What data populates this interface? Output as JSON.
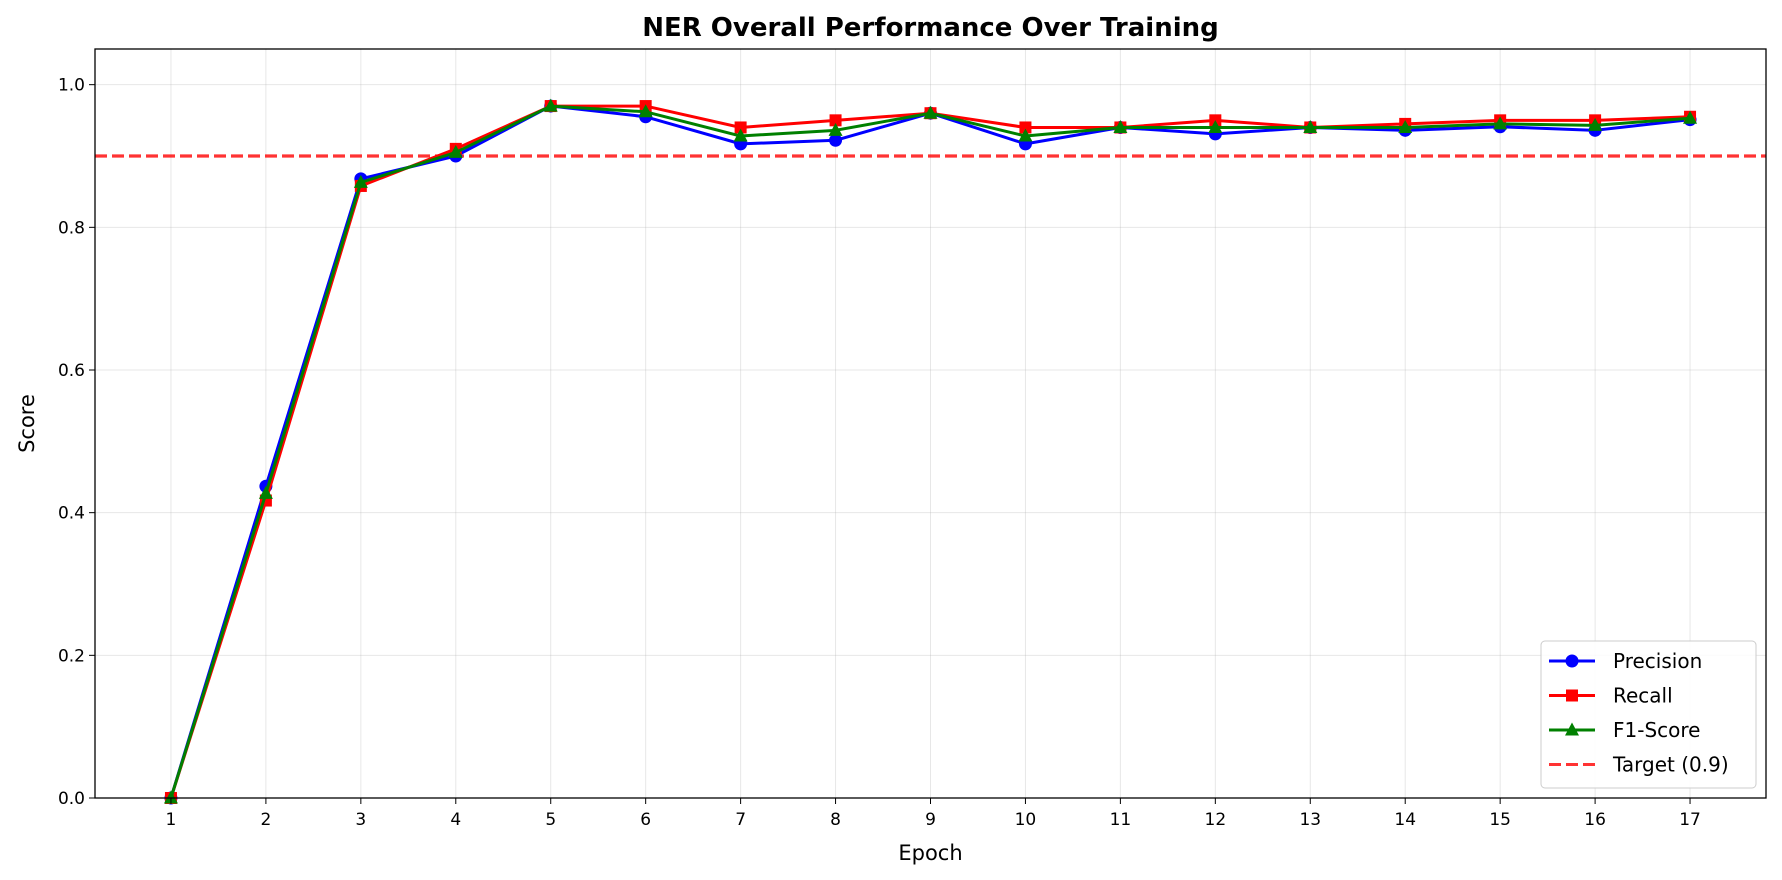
{
  "chart_data": {
    "type": "line",
    "title": "NER Overall Performance Over Training",
    "xlabel": "Epoch",
    "ylabel": "Score",
    "x": [
      1,
      2,
      3,
      4,
      5,
      6,
      7,
      8,
      9,
      10,
      11,
      12,
      13,
      14,
      15,
      16,
      17
    ],
    "xlim": [
      0.2,
      17.8
    ],
    "ylim": [
      0,
      1.05
    ],
    "yticks": [
      0.0,
      0.2,
      0.4,
      0.6,
      0.8,
      1.0
    ],
    "grid": true,
    "legend_position": "bottom-right",
    "series": [
      {
        "name": "Precision",
        "color": "#0000ff",
        "marker": "circle",
        "values": [
          0.0,
          0.437,
          0.868,
          0.9,
          0.97,
          0.955,
          0.917,
          0.922,
          0.96,
          0.917,
          0.94,
          0.931,
          0.94,
          0.936,
          0.941,
          0.936,
          0.951
        ]
      },
      {
        "name": "Recall",
        "color": "#ff0000",
        "marker": "square",
        "values": [
          0.0,
          0.417,
          0.858,
          0.91,
          0.97,
          0.97,
          0.94,
          0.95,
          0.96,
          0.94,
          0.94,
          0.95,
          0.94,
          0.945,
          0.95,
          0.95,
          0.955
        ]
      },
      {
        "name": "F1-Score",
        "color": "#008000",
        "marker": "triangle",
        "values": [
          0.0,
          0.427,
          0.863,
          0.905,
          0.97,
          0.962,
          0.928,
          0.936,
          0.96,
          0.928,
          0.94,
          0.94,
          0.94,
          0.94,
          0.945,
          0.943,
          0.953
        ]
      }
    ],
    "reference_line": {
      "name": "Target (0.9)",
      "value": 0.9,
      "color": "#ff0000",
      "style": "dashed"
    }
  }
}
